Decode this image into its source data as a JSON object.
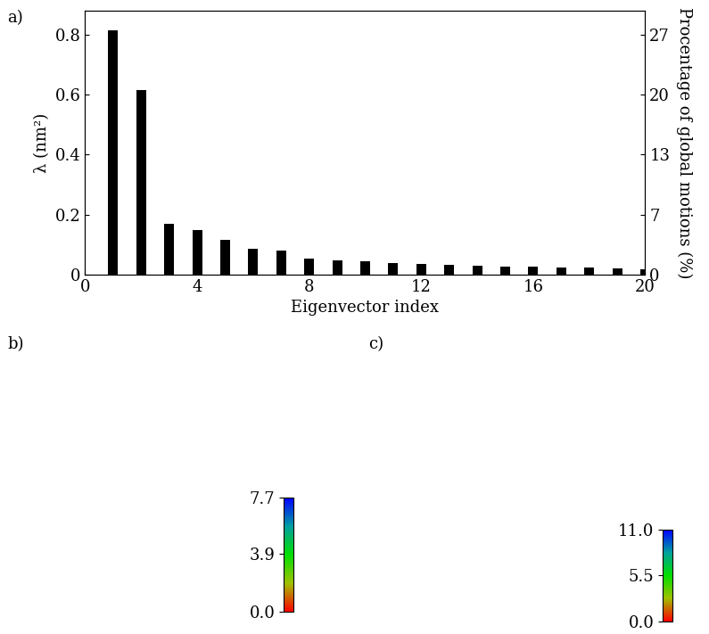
{
  "chart_data": [
    {
      "type": "bar",
      "panel_label": "a)",
      "x_label": "Eigenvector index",
      "y_label": "λ (nm²)",
      "y2_label": "Procentage of global motions (%)",
      "x": [
        1,
        2,
        3,
        4,
        5,
        6,
        7,
        8,
        9,
        10,
        11,
        12,
        13,
        14,
        15,
        16,
        17,
        18,
        19,
        20
      ],
      "values": [
        0.815,
        0.615,
        0.168,
        0.147,
        0.117,
        0.085,
        0.08,
        0.052,
        0.048,
        0.043,
        0.038,
        0.034,
        0.031,
        0.028,
        0.027,
        0.026,
        0.024,
        0.022,
        0.02,
        0.018
      ],
      "color": "#000000",
      "xlim": [
        0,
        20
      ],
      "xticks": [
        0,
        4,
        8,
        12,
        16,
        20
      ],
      "ylim": [
        0,
        0.88
      ],
      "yticks": [
        0,
        0.2,
        0.4,
        0.6,
        0.8
      ],
      "y2lim": [
        0,
        29.33
      ],
      "y2ticks": [
        0,
        {
          "value": 6.67,
          "label": "7"
        },
        {
          "value": 13.33,
          "label": "13"
        },
        20,
        {
          "value": 26.67,
          "label": "27"
        }
      ]
    },
    {
      "type": "image",
      "panel_label": "b)",
      "colorbar_range": [
        0,
        7.7
      ],
      "colorbar_ticks": [
        {
          "value": 0,
          "label": "0.0"
        },
        3.9,
        7.7
      ]
    },
    {
      "type": "image",
      "panel_label": "c)",
      "colorbar_range": [
        0,
        11.0
      ],
      "colorbar_ticks": [
        {
          "value": 0,
          "label": "0.0"
        },
        5.5,
        {
          "value": 11.0,
          "label": "11.0"
        }
      ]
    }
  ]
}
